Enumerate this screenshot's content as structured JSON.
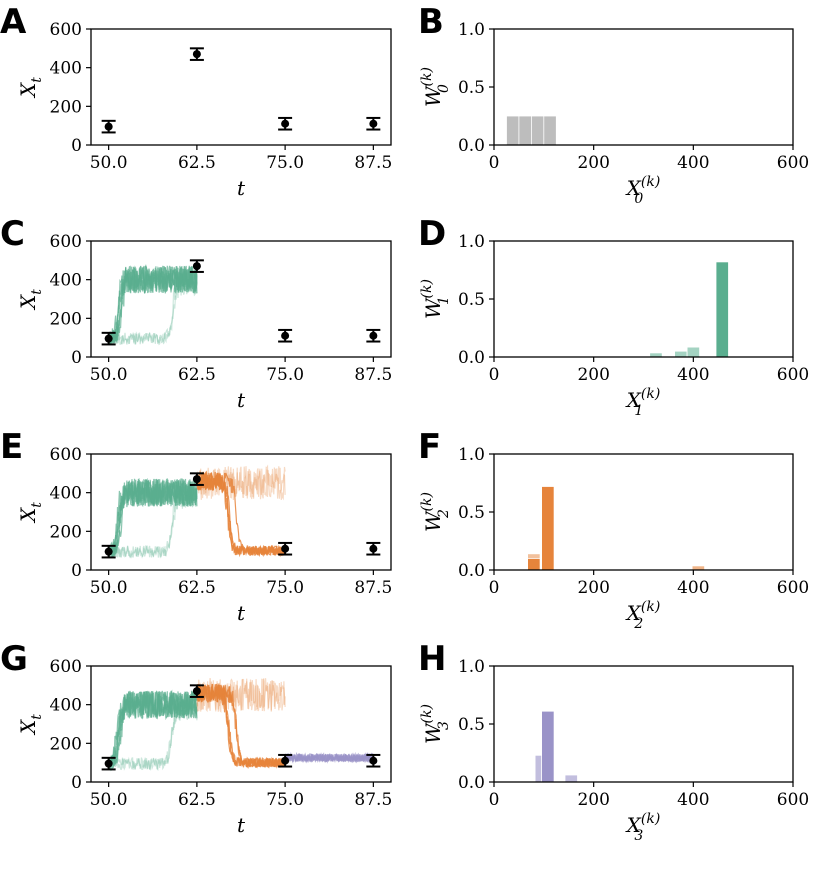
{
  "colors": {
    "prior": "#bdbdbd",
    "step1": "#5aae8f",
    "step2": "#e6843b",
    "step3": "#9a93c8",
    "obs": "#000000"
  },
  "panel_letters": [
    "A",
    "B",
    "C",
    "D",
    "E",
    "F",
    "G",
    "H"
  ],
  "chart_data": [
    {
      "panel": "A",
      "type": "scatter",
      "xlabel": "t",
      "ylabel": "X",
      "ylabel_sub": "t",
      "xlim": [
        47.5,
        90
      ],
      "ylim": [
        0,
        600
      ],
      "xticks": [
        "50.0",
        "62.5",
        "75.0",
        "87.5"
      ],
      "yticks": [
        "0",
        "200",
        "400",
        "600"
      ],
      "observations": [
        {
          "t": 50.0,
          "x": 95,
          "err": 30
        },
        {
          "t": 62.5,
          "x": 470,
          "err": 30
        },
        {
          "t": 75.0,
          "x": 110,
          "err": 30
        },
        {
          "t": 87.5,
          "x": 110,
          "err": 30
        }
      ],
      "trajectories": []
    },
    {
      "panel": "B",
      "type": "bar",
      "xlabel": "X",
      "xlabel_sub": "0",
      "xlabel_sup": "(k)",
      "ylabel": "W",
      "ylabel_sub": "0",
      "ylabel_sup": "(k)",
      "xlim": [
        0,
        600
      ],
      "ylim": [
        0,
        1
      ],
      "xticks": [
        "0",
        "200",
        "400",
        "600"
      ],
      "yticks": [
        "0.0",
        "0.5",
        "1.0"
      ],
      "bars": [
        {
          "x": 37.5,
          "w": 0.25,
          "color": "prior",
          "alpha": 1
        },
        {
          "x": 62.5,
          "w": 0.25,
          "color": "prior",
          "alpha": 1
        },
        {
          "x": 87.5,
          "w": 0.25,
          "color": "prior",
          "alpha": 1
        },
        {
          "x": 112.5,
          "w": 0.25,
          "color": "prior",
          "alpha": 1
        }
      ]
    },
    {
      "panel": "C",
      "type": "line",
      "xlabel": "t",
      "ylabel": "X",
      "ylabel_sub": "t",
      "xlim": [
        47.5,
        90
      ],
      "ylim": [
        0,
        600
      ],
      "xticks": [
        "50.0",
        "62.5",
        "75.0",
        "87.5"
      ],
      "yticks": [
        "0",
        "200",
        "400",
        "600"
      ],
      "observations": [
        {
          "t": 50.0,
          "x": 95,
          "err": 30
        },
        {
          "t": 62.5,
          "x": 470,
          "err": 30
        },
        {
          "t": 75.0,
          "x": 110,
          "err": 30
        },
        {
          "t": 87.5,
          "x": 110,
          "err": 30
        }
      ],
      "trajectories": [
        {
          "color": "step1",
          "t0": 50,
          "t1": 62.5,
          "count": 6,
          "start": 95,
          "level": 400,
          "rise": 51.5,
          "noise": 90,
          "alpha": 0.7
        },
        {
          "color": "step1",
          "t0": 50,
          "t1": 62.5,
          "count": 2,
          "start": 95,
          "level": 380,
          "rise": 58.5,
          "noise": 80,
          "alpha": 0.3
        }
      ]
    },
    {
      "panel": "D",
      "type": "bar",
      "xlabel": "X",
      "xlabel_sub": "1",
      "xlabel_sup": "(k)",
      "ylabel": "W",
      "ylabel_sub": "1",
      "ylabel_sup": "(k)",
      "xlim": [
        0,
        600
      ],
      "ylim": [
        0,
        1
      ],
      "xticks": [
        "0",
        "200",
        "400",
        "600"
      ],
      "yticks": [
        "0.0",
        "0.5",
        "1.0"
      ],
      "bars": [
        {
          "x": 325,
          "w": 0.035,
          "color": "step1",
          "alpha": 0.55
        },
        {
          "x": 375,
          "w": 0.05,
          "color": "step1",
          "alpha": 0.55
        },
        {
          "x": 400,
          "w": 0.085,
          "color": "step1",
          "alpha": 0.55
        },
        {
          "x": 458,
          "w": 0.82,
          "color": "step1",
          "alpha": 1
        }
      ]
    },
    {
      "panel": "E",
      "type": "line",
      "xlabel": "t",
      "ylabel": "X",
      "ylabel_sub": "t",
      "xlim": [
        47.5,
        90
      ],
      "ylim": [
        0,
        600
      ],
      "xticks": [
        "50.0",
        "62.5",
        "75.0",
        "87.5"
      ],
      "yticks": [
        "0",
        "200",
        "400",
        "600"
      ],
      "observations": [
        {
          "t": 50.0,
          "x": 95,
          "err": 30
        },
        {
          "t": 62.5,
          "x": 470,
          "err": 30
        },
        {
          "t": 75.0,
          "x": 110,
          "err": 30
        },
        {
          "t": 87.5,
          "x": 110,
          "err": 30
        }
      ],
      "trajectories": [
        {
          "color": "step1",
          "t0": 50,
          "t1": 62.5,
          "count": 6,
          "start": 95,
          "level": 400,
          "rise": 51.5,
          "noise": 90,
          "alpha": 0.7
        },
        {
          "color": "step1",
          "t0": 50,
          "t1": 62.5,
          "count": 2,
          "start": 95,
          "level": 380,
          "rise": 58.5,
          "noise": 80,
          "alpha": 0.3
        },
        {
          "color": "step2",
          "t0": 62.5,
          "t1": 75,
          "count": 5,
          "start": 460,
          "level": 100,
          "fall": 67.5,
          "noise": 60,
          "alpha": 0.85
        },
        {
          "color": "step2",
          "t0": 62.5,
          "t1": 75,
          "count": 2,
          "start": 450,
          "level": 380,
          "fall": 999,
          "noise": 110,
          "alpha": 0.3
        }
      ]
    },
    {
      "panel": "F",
      "type": "bar",
      "xlabel": "X",
      "xlabel_sub": "2",
      "xlabel_sup": "(k)",
      "ylabel": "W",
      "ylabel_sub": "2",
      "ylabel_sup": "(k)",
      "xlim": [
        0,
        600
      ],
      "ylim": [
        0,
        1
      ],
      "xticks": [
        "0",
        "200",
        "400",
        "600"
      ],
      "yticks": [
        "0.0",
        "0.5",
        "1.0"
      ],
      "bars": [
        {
          "x": 80,
          "w": 0.14,
          "color": "step2",
          "alpha": 0.5
        },
        {
          "x": 80,
          "w": 0.1,
          "color": "step2",
          "alpha": 1
        },
        {
          "x": 108,
          "w": 0.72,
          "color": "step2",
          "alpha": 1
        },
        {
          "x": 410,
          "w": 0.035,
          "color": "step2",
          "alpha": 0.6
        }
      ]
    },
    {
      "panel": "G",
      "type": "line",
      "xlabel": "t",
      "ylabel": "X",
      "ylabel_sub": "t",
      "xlim": [
        47.5,
        90
      ],
      "ylim": [
        0,
        600
      ],
      "xticks": [
        "50.0",
        "62.5",
        "75.0",
        "87.5"
      ],
      "yticks": [
        "0",
        "200",
        "400",
        "600"
      ],
      "observations": [
        {
          "t": 50.0,
          "x": 95,
          "err": 30
        },
        {
          "t": 62.5,
          "x": 470,
          "err": 30
        },
        {
          "t": 75.0,
          "x": 110,
          "err": 30
        },
        {
          "t": 87.5,
          "x": 110,
          "err": 30
        }
      ],
      "trajectories": [
        {
          "color": "step1",
          "t0": 50,
          "t1": 62.5,
          "count": 6,
          "start": 95,
          "level": 400,
          "rise": 51.5,
          "noise": 90,
          "alpha": 0.7
        },
        {
          "color": "step1",
          "t0": 50,
          "t1": 62.5,
          "count": 2,
          "start": 95,
          "level": 380,
          "rise": 58.5,
          "noise": 80,
          "alpha": 0.3
        },
        {
          "color": "step2",
          "t0": 62.5,
          "t1": 75,
          "count": 5,
          "start": 460,
          "level": 100,
          "fall": 67.5,
          "noise": 60,
          "alpha": 0.85
        },
        {
          "color": "step2",
          "t0": 62.5,
          "t1": 75,
          "count": 2,
          "start": 450,
          "level": 380,
          "fall": 999,
          "noise": 110,
          "alpha": 0.3
        },
        {
          "color": "step3",
          "t0": 75,
          "t1": 87.5,
          "count": 6,
          "start": 110,
          "level": 125,
          "noise": 45,
          "alpha": 0.7
        }
      ]
    },
    {
      "panel": "H",
      "type": "bar",
      "xlabel": "X",
      "xlabel_sub": "3",
      "xlabel_sup": "(k)",
      "ylabel": "W",
      "ylabel_sub": "3",
      "ylabel_sup": "(k)",
      "xlim": [
        0,
        600
      ],
      "ylim": [
        0,
        1
      ],
      "xticks": [
        "0",
        "200",
        "400",
        "600"
      ],
      "yticks": [
        "0.0",
        "0.5",
        "1.0"
      ],
      "bars": [
        {
          "x": 95,
          "w": 0.23,
          "color": "step3",
          "alpha": 0.6
        },
        {
          "x": 108,
          "w": 0.61,
          "color": "step3",
          "alpha": 1
        },
        {
          "x": 155,
          "w": 0.06,
          "color": "step3",
          "alpha": 0.6
        }
      ]
    }
  ]
}
